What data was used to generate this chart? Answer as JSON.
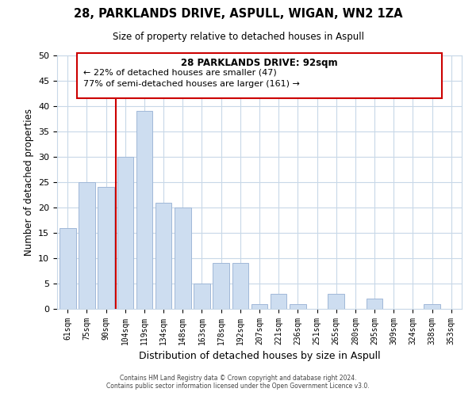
{
  "title": "28, PARKLANDS DRIVE, ASPULL, WIGAN, WN2 1ZA",
  "subtitle": "Size of property relative to detached houses in Aspull",
  "xlabel": "Distribution of detached houses by size in Aspull",
  "ylabel": "Number of detached properties",
  "bar_labels": [
    "61sqm",
    "75sqm",
    "90sqm",
    "104sqm",
    "119sqm",
    "134sqm",
    "148sqm",
    "163sqm",
    "178sqm",
    "192sqm",
    "207sqm",
    "221sqm",
    "236sqm",
    "251sqm",
    "265sqm",
    "280sqm",
    "295sqm",
    "309sqm",
    "324sqm",
    "338sqm",
    "353sqm"
  ],
  "bar_values": [
    16,
    25,
    24,
    30,
    39,
    21,
    20,
    5,
    9,
    9,
    1,
    3,
    1,
    0,
    3,
    0,
    2,
    0,
    0,
    1,
    0
  ],
  "bar_color": "#cdddf0",
  "bar_edge_color": "#a0b8d8",
  "vline_color": "#cc0000",
  "vline_x_index": 2.5,
  "ylim": [
    0,
    50
  ],
  "yticks": [
    0,
    5,
    10,
    15,
    20,
    25,
    30,
    35,
    40,
    45,
    50
  ],
  "ann_line1": "28 PARKLANDS DRIVE: 92sqm",
  "ann_line2": "← 22% of detached houses are smaller (47)",
  "ann_line3": "77% of semi-detached houses are larger (161) →",
  "footer1": "Contains HM Land Registry data © Crown copyright and database right 2024.",
  "footer2": "Contains public sector information licensed under the Open Government Licence v3.0.",
  "bg_color": "#ffffff",
  "grid_color": "#c8d8e8"
}
